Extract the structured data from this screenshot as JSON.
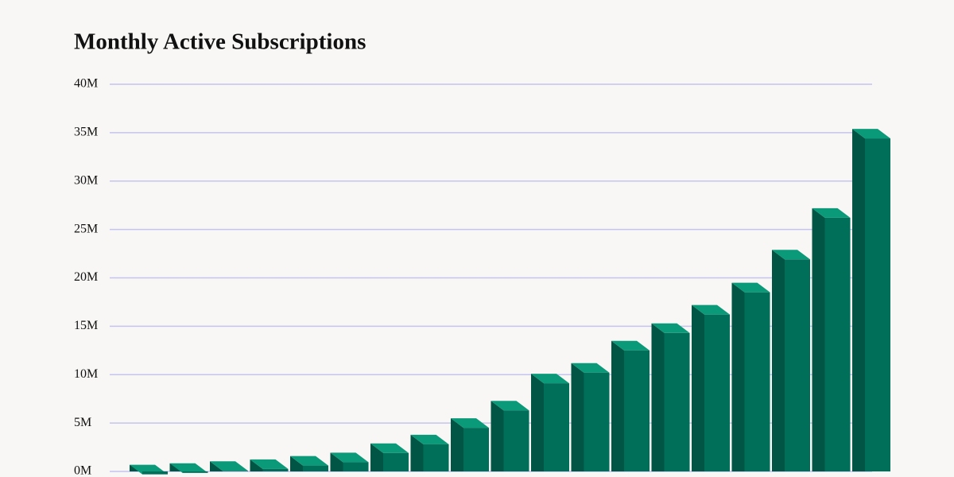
{
  "chart_data": {
    "type": "bar3d",
    "title": "Monthly Active Subscriptions",
    "categories": [
      null,
      null,
      null,
      null,
      null,
      null,
      null,
      null,
      null,
      null,
      null,
      null,
      null,
      null,
      null,
      null,
      null,
      null,
      null
    ],
    "values": [
      0.2,
      0.35,
      0.55,
      0.75,
      1.1,
      1.45,
      2.4,
      3.3,
      5.0,
      6.8,
      9.6,
      10.7,
      13.0,
      14.8,
      16.7,
      19.0,
      22.4,
      26.7,
      34.9
    ],
    "colors": {
      "front": "#006f5a",
      "side": "#005544",
      "top": "#0b9a79"
    },
    "ylim": [
      0,
      40
    ],
    "yticks": [
      {
        "value": 0,
        "label": "0M"
      },
      {
        "value": 5,
        "label": "5M"
      },
      {
        "value": 10,
        "label": "10M"
      },
      {
        "value": 15,
        "label": "15M"
      },
      {
        "value": 20,
        "label": "20M"
      },
      {
        "value": 25,
        "label": "25M"
      },
      {
        "value": 30,
        "label": "30M"
      },
      {
        "value": 35,
        "label": "35M"
      },
      {
        "value": 40,
        "label": "40M"
      }
    ],
    "grid": true
  }
}
